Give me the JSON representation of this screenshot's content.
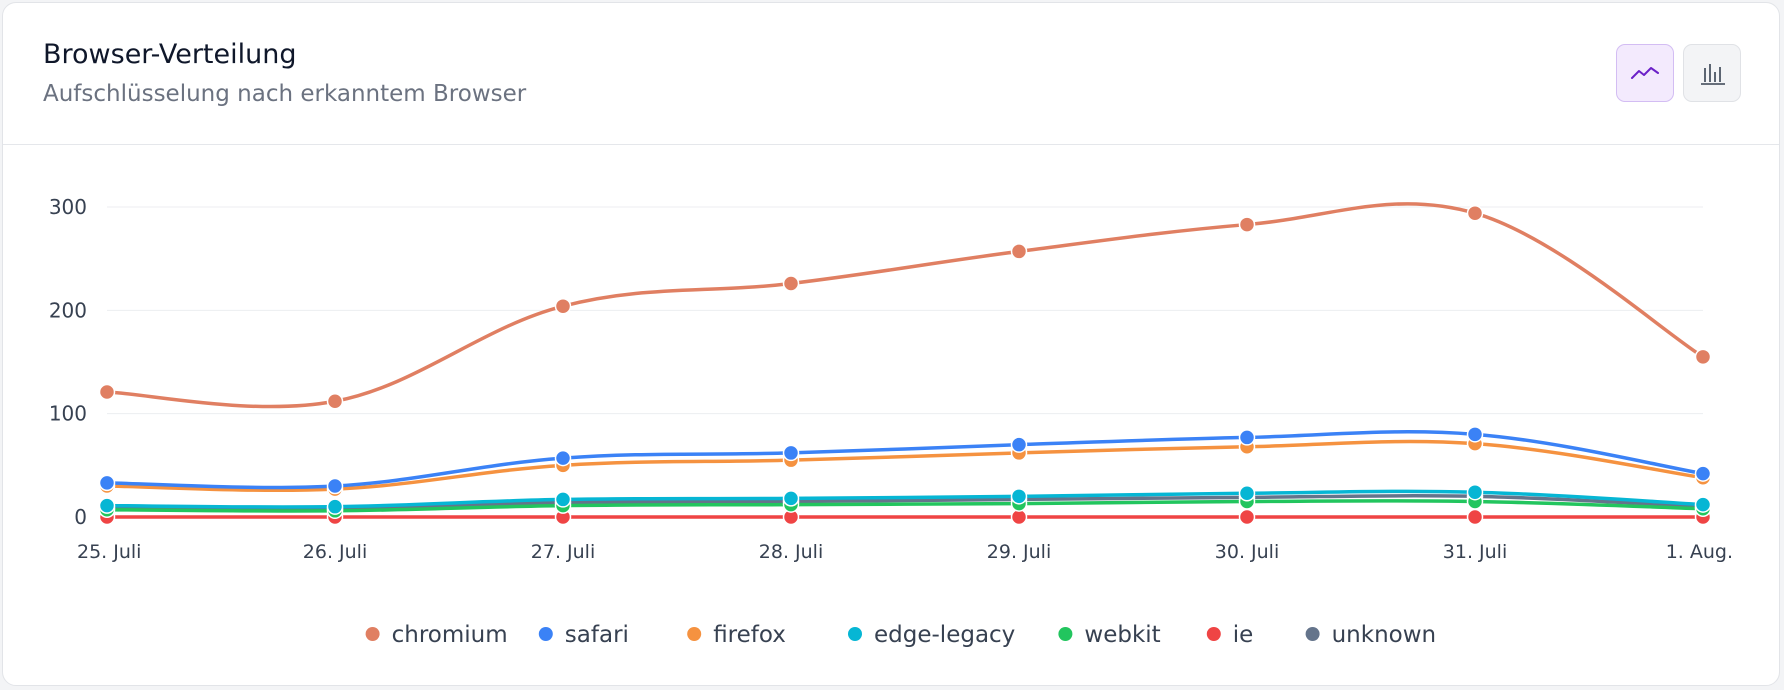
{
  "header": {
    "title": "Browser-Verteilung",
    "subtitle": "Aufschlüsselung nach erkanntem Browser"
  },
  "toggles": {
    "line_icon": "line-chart-icon",
    "bar_icon": "bar-chart-icon",
    "active": "line"
  },
  "chart_data": {
    "type": "line",
    "categories": [
      "25. Juli",
      "26. Juli",
      "27. Juli",
      "28. Juli",
      "29. Juli",
      "30. Juli",
      "31. Juli",
      "1. Aug."
    ],
    "ylim": [
      0,
      300
    ],
    "yticks": [
      0,
      100,
      200,
      300
    ],
    "grid": true,
    "legend_position": "bottom",
    "series": [
      {
        "name": "chromium",
        "color": "#e07f62",
        "values": [
          121,
          112,
          204,
          226,
          257,
          283,
          294,
          155
        ]
      },
      {
        "name": "safari",
        "color": "#3b82f6",
        "values": [
          33,
          30,
          57,
          62,
          70,
          77,
          80,
          42
        ]
      },
      {
        "name": "firefox",
        "color": "#f59240",
        "values": [
          30,
          27,
          50,
          55,
          62,
          68,
          71,
          38
        ]
      },
      {
        "name": "edge-legacy",
        "color": "#06b6d4",
        "values": [
          11,
          10,
          17,
          18,
          20,
          23,
          24,
          12
        ]
      },
      {
        "name": "webkit",
        "color": "#22c55e",
        "values": [
          7,
          6,
          11,
          12,
          13,
          15,
          15,
          8
        ]
      },
      {
        "name": "ie",
        "color": "#ef4444",
        "values": [
          0,
          0,
          0,
          0,
          0,
          0,
          0,
          0
        ]
      },
      {
        "name": "unknown",
        "color": "#64748b",
        "values": [
          9,
          8,
          14,
          15,
          17,
          19,
          20,
          10
        ]
      }
    ]
  }
}
